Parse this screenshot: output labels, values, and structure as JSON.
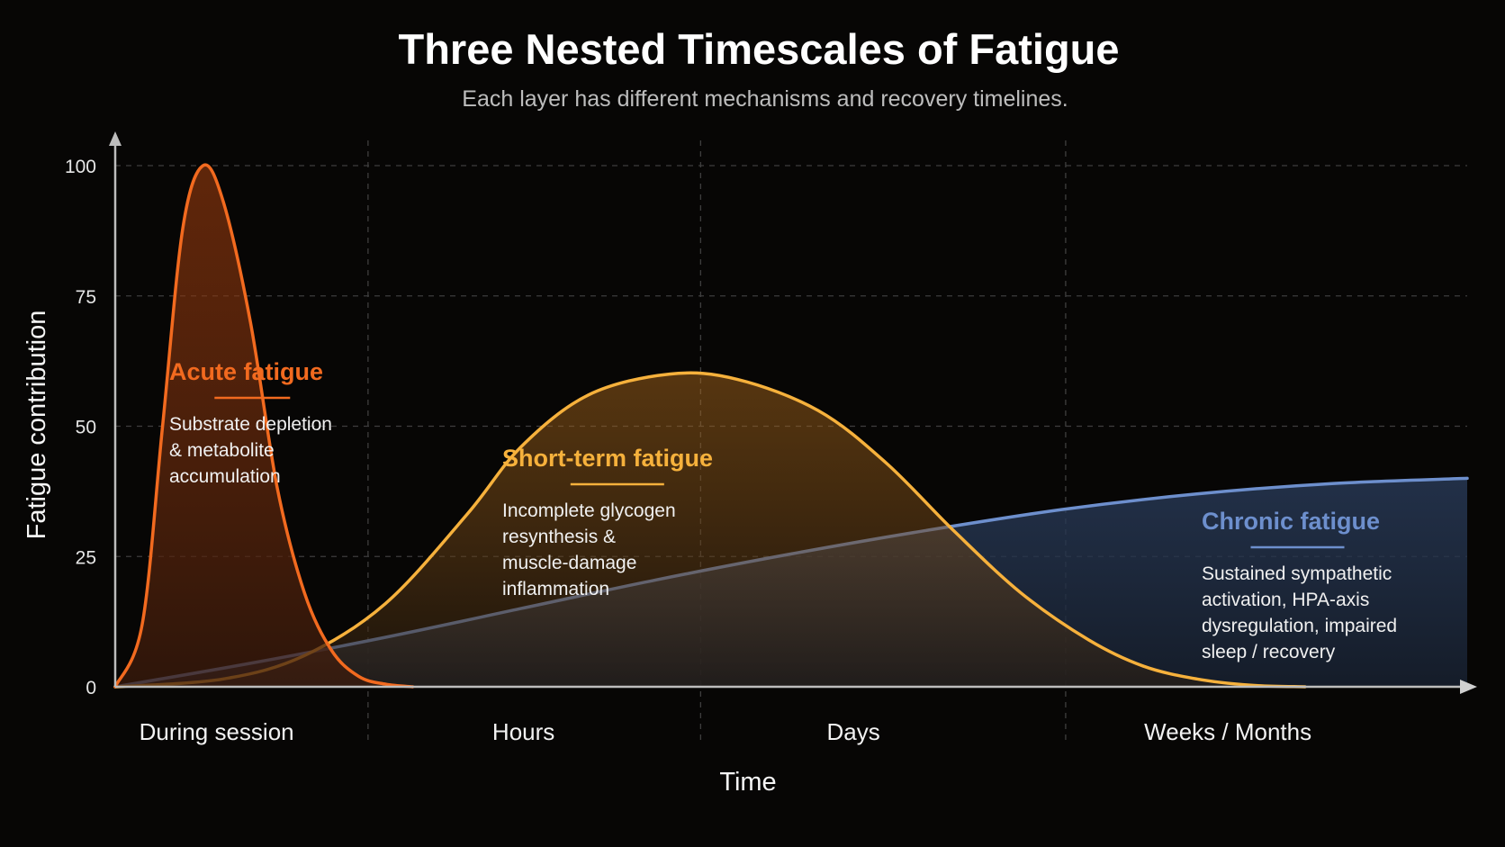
{
  "chart_data": {
    "type": "area",
    "title": "Three Nested Timescales of Fatigue",
    "subtitle": "Each layer has different mechanisms and recovery timelines.",
    "xlabel": "Time",
    "ylabel": "Fatigue contribution",
    "ylim": [
      0,
      100
    ],
    "yticks": [
      "0",
      "25",
      "50",
      "75",
      "100"
    ],
    "x_categories": [
      "During session",
      "Hours",
      "Days",
      "Weeks / Months"
    ],
    "grid": true,
    "series": [
      {
        "name": "Acute fatigue",
        "color": "#f26a1f",
        "peak": 100,
        "description": [
          "Substrate depletion",
          "& metabolite",
          "accumulation"
        ],
        "points": [
          [
            0.0,
            0
          ],
          [
            0.02,
            12
          ],
          [
            0.035,
            50
          ],
          [
            0.05,
            88
          ],
          [
            0.065,
            100
          ],
          [
            0.08,
            93
          ],
          [
            0.1,
            70
          ],
          [
            0.12,
            38
          ],
          [
            0.14,
            18
          ],
          [
            0.16,
            7
          ],
          [
            0.18,
            2
          ],
          [
            0.2,
            0.5
          ],
          [
            0.22,
            0
          ]
        ]
      },
      {
        "name": "Short-term fatigue",
        "color": "#f6b13c",
        "peak": 60,
        "description": [
          "Incomplete glycogen",
          "resynthesis &",
          "muscle-damage",
          "inflammation"
        ],
        "points": [
          [
            0.0,
            0
          ],
          [
            0.08,
            1.5
          ],
          [
            0.14,
            6
          ],
          [
            0.2,
            16
          ],
          [
            0.26,
            33
          ],
          [
            0.3,
            46
          ],
          [
            0.35,
            56
          ],
          [
            0.41,
            60
          ],
          [
            0.46,
            59
          ],
          [
            0.52,
            53
          ],
          [
            0.57,
            43
          ],
          [
            0.62,
            30
          ],
          [
            0.67,
            18
          ],
          [
            0.72,
            9
          ],
          [
            0.76,
            4
          ],
          [
            0.8,
            1.5
          ],
          [
            0.84,
            0.3
          ],
          [
            0.88,
            0
          ]
        ]
      },
      {
        "name": "Chronic fatigue",
        "color": "#6d8fcd",
        "peak": 40,
        "description": [
          "Sustained sympathetic",
          "activation, HPA-axis",
          "dysregulation, impaired",
          "sleep / recovery"
        ],
        "points": [
          [
            0.0,
            0
          ],
          [
            0.1,
            4.5
          ],
          [
            0.2,
            9.5
          ],
          [
            0.3,
            15
          ],
          [
            0.4,
            20.5
          ],
          [
            0.5,
            25.5
          ],
          [
            0.6,
            30
          ],
          [
            0.7,
            34
          ],
          [
            0.8,
            37
          ],
          [
            0.9,
            39
          ],
          [
            1.0,
            40
          ]
        ]
      }
    ]
  }
}
